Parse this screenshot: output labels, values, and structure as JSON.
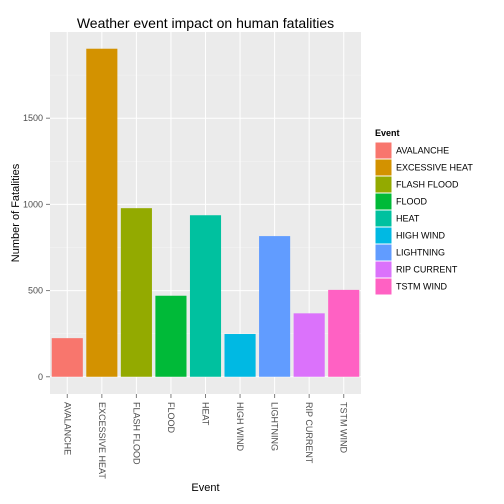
{
  "chart_data": {
    "type": "bar",
    "title": "Weather event impact on human fatalities",
    "xlabel": "Event",
    "ylabel": "Number of Fatalities",
    "categories": [
      "AVALANCHE",
      "EXCESSIVE HEAT",
      "FLASH FLOOD",
      "FLOOD",
      "HEAT",
      "HIGH WIND",
      "LIGHTNING",
      "RIP CURRENT",
      "TSTM WIND"
    ],
    "values": [
      224,
      1903,
      978,
      470,
      937,
      248,
      816,
      368,
      504
    ],
    "colors": [
      "#F8766D",
      "#D39200",
      "#93AA00",
      "#00BA38",
      "#00C19F",
      "#00B9E3",
      "#619CFF",
      "#DB72FB",
      "#FF61C3"
    ],
    "ylim": [
      -100,
      2000
    ],
    "yticks": [
      0,
      500,
      1000,
      1500
    ],
    "ytick_labels": [
      "0",
      "500",
      "1000",
      "1500"
    ],
    "grid": true,
    "legend": {
      "title": "Event",
      "placement": "right",
      "entries": [
        "AVALANCHE",
        "EXCESSIVE HEAT",
        "FLASH FLOOD",
        "FLOOD",
        "HEAT",
        "HIGH WIND",
        "LIGHTNING",
        "RIP CURRENT",
        "TSTM WIND"
      ]
    },
    "panel_background": "#EBEBEB",
    "grid_color": "#FFFFFF"
  }
}
